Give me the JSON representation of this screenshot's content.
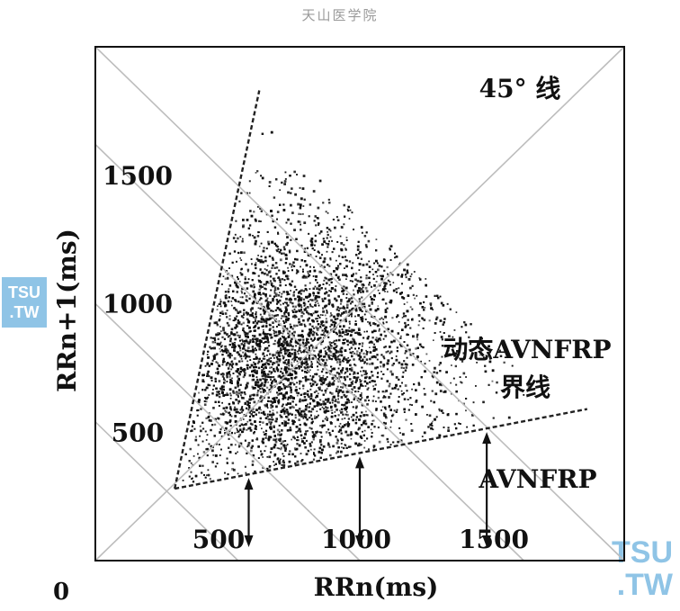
{
  "watermarks": {
    "top": "天山医学院",
    "left_line1": "TSU",
    "left_line2": ".TW",
    "br_line1": "TSU",
    "br_line2": ".TW"
  },
  "chart_data": {
    "type": "scatter",
    "xlabel": "RRn(ms)",
    "ylabel": "RRn+1(ms)",
    "origin_label": "0",
    "xlim": [
      0,
      2000
    ],
    "ylim": [
      0,
      2000
    ],
    "x_ticks": [
      {
        "value": 500,
        "label": "500"
      },
      {
        "value": 1000,
        "label": "1000"
      },
      {
        "value": 1500,
        "label": "1500"
      }
    ],
    "y_ticks": [
      {
        "value": 500,
        "label": "500"
      },
      {
        "value": 1000,
        "label": "1000"
      },
      {
        "value": 1500,
        "label": "1500"
      }
    ],
    "annotations": {
      "line45": "45° 线",
      "dynamic_line1": "动态AVNFRP",
      "dynamic_line2": "界线",
      "avnfrp": "AVNFRP"
    },
    "lines": [
      {
        "role": "45-degree",
        "from": [
          0,
          0
        ],
        "to": [
          2000,
          2000
        ]
      },
      {
        "role": "anti-diagonal",
        "from": [
          0,
          2000
        ],
        "to": [
          2000,
          0
        ]
      },
      {
        "role": "iso-sum",
        "from": [
          0,
          1620
        ],
        "to": [
          1620,
          0
        ]
      },
      {
        "role": "iso-sum",
        "from": [
          0,
          1000
        ],
        "to": [
          1000,
          0
        ]
      },
      {
        "role": "iso-sum",
        "from": [
          0,
          540
        ],
        "to": [
          540,
          0
        ]
      }
    ],
    "boundaries": [
      {
        "role": "AVNFRP",
        "from": [
          300,
          280
        ],
        "to": [
          1860,
          590
        ]
      },
      {
        "role": "dynamic-AVNFRP",
        "from": [
          300,
          280
        ],
        "to": [
          620,
          1830
        ]
      }
    ],
    "arrows_x": [
      580,
      1000,
      1480
    ],
    "scatter_density": {
      "center": [
        700,
        750
      ],
      "description_only": false
    },
    "grid": false,
    "legend": "none"
  }
}
